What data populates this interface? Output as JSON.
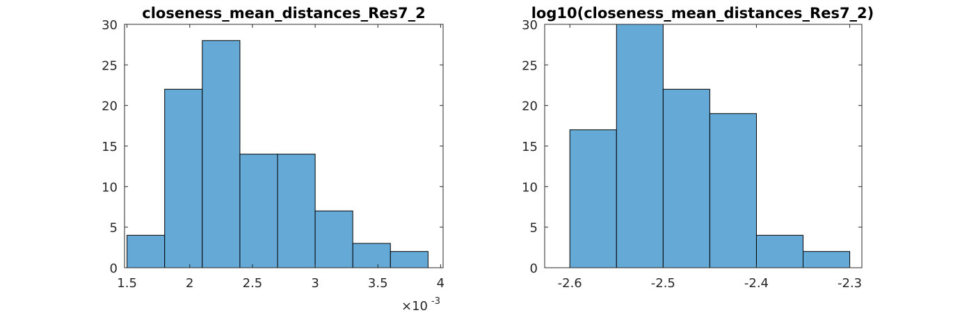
{
  "chart_data": [
    {
      "type": "bar",
      "title": "closeness_mean_distances_Res7_2",
      "xlabel": "",
      "ylabel": "",
      "bin_edges": [
        0.0015,
        0.0018,
        0.0021,
        0.0024,
        0.0027,
        0.003,
        0.0033,
        0.0036,
        0.0039
      ],
      "values": [
        4,
        22,
        28,
        14,
        14,
        7,
        3,
        2
      ],
      "xlim": [
        0.00148,
        0.00402
      ],
      "ylim": [
        0,
        30
      ],
      "xticks": [
        0.0015,
        0.002,
        0.0025,
        0.003,
        0.0035,
        0.004
      ],
      "xtick_labels": [
        "1.5",
        "2",
        "2.5",
        "3",
        "3.5",
        "4"
      ],
      "yticks": [
        0,
        5,
        10,
        15,
        20,
        25,
        30
      ],
      "ytick_labels": [
        "0",
        "5",
        "10",
        "15",
        "20",
        "25",
        "30"
      ],
      "x_exponent": {
        "base": "×10",
        "power": "-3"
      },
      "bar_color": "#65a9d7",
      "grid": false
    },
    {
      "type": "bar",
      "title": "log10(closeness_mean_distances_Res7_2)",
      "xlabel": "",
      "ylabel": "",
      "bin_edges": [
        -2.6,
        -2.55,
        -2.5,
        -2.45,
        -2.4,
        -2.35,
        -2.3
      ],
      "values": [
        17,
        30,
        22,
        19,
        4,
        2
      ],
      "xlim": [
        -2.627,
        -2.287
      ],
      "ylim": [
        0,
        30
      ],
      "xticks": [
        -2.6,
        -2.5,
        -2.4,
        -2.3
      ],
      "xtick_labels": [
        "-2.6",
        "-2.5",
        "-2.4",
        "-2.3"
      ],
      "yticks": [
        0,
        5,
        10,
        15,
        20,
        25,
        30
      ],
      "ytick_labels": [
        "0",
        "5",
        "10",
        "15",
        "20",
        "25",
        "30"
      ],
      "bar_color": "#65a9d7",
      "grid": false
    }
  ]
}
